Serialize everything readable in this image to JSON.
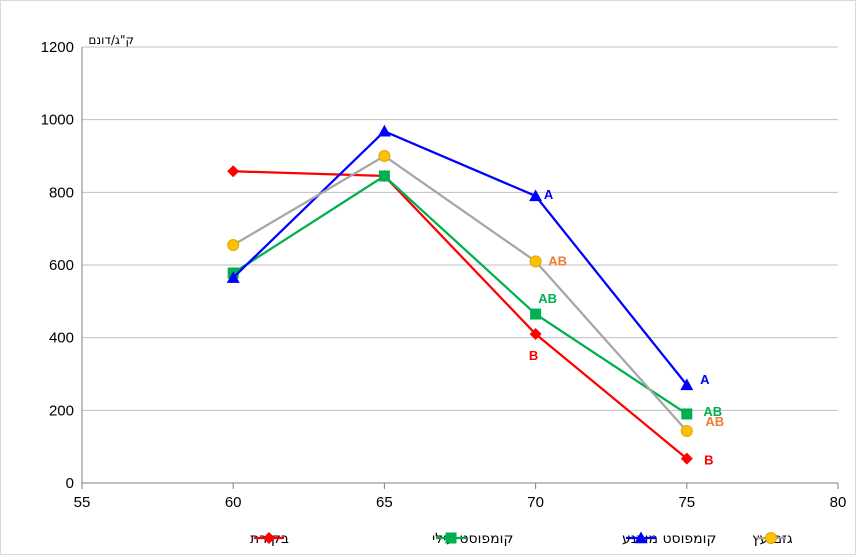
{
  "chart_data": {
    "type": "line",
    "title": "",
    "xlabel": "",
    "ylabel": "",
    "y_unit": "ק\"ג/דונם",
    "xlim": [
      55,
      80
    ],
    "ylim": [
      0,
      1200
    ],
    "x_ticks": [
      "55",
      "60",
      "65",
      "70",
      "75",
      "80"
    ],
    "y_ticks": [
      "0",
      "200",
      "400",
      "600",
      "800",
      "1000",
      "1200"
    ],
    "grid": "horizontal",
    "legend_position": "bottom",
    "series": [
      {
        "name": "בקורת",
        "color": "#ff0000",
        "marker": "diamond",
        "x": [
          60,
          65,
          70,
          75
        ],
        "values": [
          858,
          845,
          410,
          67
        ],
        "labels": [
          "",
          "",
          "B",
          "B"
        ]
      },
      {
        "name": "קומפוסט עילי",
        "color": "#00b050",
        "marker": "square",
        "x": [
          60,
          65,
          70,
          75
        ],
        "values": [
          578,
          845,
          465,
          190
        ],
        "labels": [
          "",
          "",
          "AB",
          "AB"
        ]
      },
      {
        "name": "קומפוסט מוצנע",
        "color": "#0000ff",
        "marker": "triangle",
        "x": [
          60,
          65,
          70,
          75
        ],
        "values": [
          565,
          968,
          790,
          270
        ],
        "labels": [
          "",
          "",
          "A",
          "A"
        ]
      },
      {
        "name": "גזם עץ",
        "color": "#a6a6a6",
        "marker_color": "#ffc000",
        "label_color": "#ed7d31",
        "marker": "circle",
        "x": [
          60,
          65,
          70,
          75
        ],
        "values": [
          655,
          900,
          610,
          143
        ],
        "labels": [
          "",
          "",
          "AB",
          "AB"
        ]
      }
    ]
  }
}
